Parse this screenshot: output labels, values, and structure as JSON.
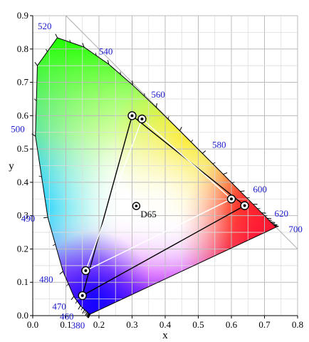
{
  "chart_data": {
    "type": "scatter",
    "title": "",
    "xlabel": "x",
    "ylabel": "y",
    "xlim": [
      0.0,
      0.8
    ],
    "ylim": [
      0.0,
      0.9
    ],
    "xticks": [
      "0.0",
      "0.1",
      "0.2",
      "0.3",
      "0.4",
      "0.5",
      "0.6",
      "0.7",
      "0.8"
    ],
    "yticks": [
      "0.0",
      "0.1",
      "0.2",
      "0.3",
      "0.4",
      "0.5",
      "0.6",
      "0.7",
      "0.8",
      "0.9"
    ],
    "grid": true,
    "spectral_locus": [
      [
        0.1741,
        0.005
      ],
      [
        0.1738,
        0.0049
      ],
      [
        0.1733,
        0.0048
      ],
      [
        0.1726,
        0.0048
      ],
      [
        0.1714,
        0.0051
      ],
      [
        0.1689,
        0.0069
      ],
      [
        0.1644,
        0.0109
      ],
      [
        0.1566,
        0.0177
      ],
      [
        0.144,
        0.0297
      ],
      [
        0.1241,
        0.0578
      ],
      [
        0.0913,
        0.1327
      ],
      [
        0.0454,
        0.295
      ],
      [
        0.0082,
        0.5384
      ],
      [
        0.0139,
        0.7502
      ],
      [
        0.0743,
        0.8338
      ],
      [
        0.1547,
        0.8059
      ],
      [
        0.2296,
        0.7543
      ],
      [
        0.3016,
        0.6923
      ],
      [
        0.3731,
        0.6245
      ],
      [
        0.4441,
        0.5547
      ],
      [
        0.5125,
        0.4866
      ],
      [
        0.5752,
        0.4242
      ],
      [
        0.627,
        0.3725
      ],
      [
        0.6658,
        0.334
      ],
      [
        0.6915,
        0.3083
      ],
      [
        0.7079,
        0.292
      ],
      [
        0.719,
        0.2809
      ],
      [
        0.726,
        0.274
      ],
      [
        0.73,
        0.27
      ],
      [
        0.7347,
        0.2653
      ]
    ],
    "wavelength_labels": [
      {
        "label": "380",
        "x": 0.1741,
        "y": 0.005
      },
      {
        "label": "460",
        "x": 0.144,
        "y": 0.0297
      },
      {
        "label": "470",
        "x": 0.1241,
        "y": 0.0578
      },
      {
        "label": "480",
        "x": 0.0913,
        "y": 0.1327
      },
      {
        "label": "490",
        "x": 0.0454,
        "y": 0.295
      },
      {
        "label": "500",
        "x": 0.0082,
        "y": 0.5384
      },
      {
        "label": "520",
        "x": 0.0743,
        "y": 0.8338
      },
      {
        "label": "540",
        "x": 0.2296,
        "y": 0.7543
      },
      {
        "label": "560",
        "x": 0.3731,
        "y": 0.6245
      },
      {
        "label": "580",
        "x": 0.5125,
        "y": 0.4866
      },
      {
        "label": "600",
        "x": 0.627,
        "y": 0.3725
      },
      {
        "label": "620",
        "x": 0.6915,
        "y": 0.3083
      },
      {
        "label": "700",
        "x": 0.7347,
        "y": 0.2653
      }
    ],
    "gamuts": [
      {
        "points": [
          [
            0.64,
            0.33
          ],
          [
            0.3,
            0.6
          ],
          [
            0.15,
            0.06
          ]
        ],
        "stroke": "#000000"
      },
      {
        "points": [
          [
            0.6,
            0.35
          ],
          [
            0.33,
            0.59
          ],
          [
            0.16,
            0.135
          ]
        ],
        "stroke": "#ffffff"
      }
    ],
    "white_point": {
      "label": "D65",
      "x": 0.3127,
      "y": 0.329
    },
    "colors": {
      "grid": "#bbbbbb",
      "label": "#1a1acc",
      "purple_line": "#aaaaaa"
    }
  }
}
